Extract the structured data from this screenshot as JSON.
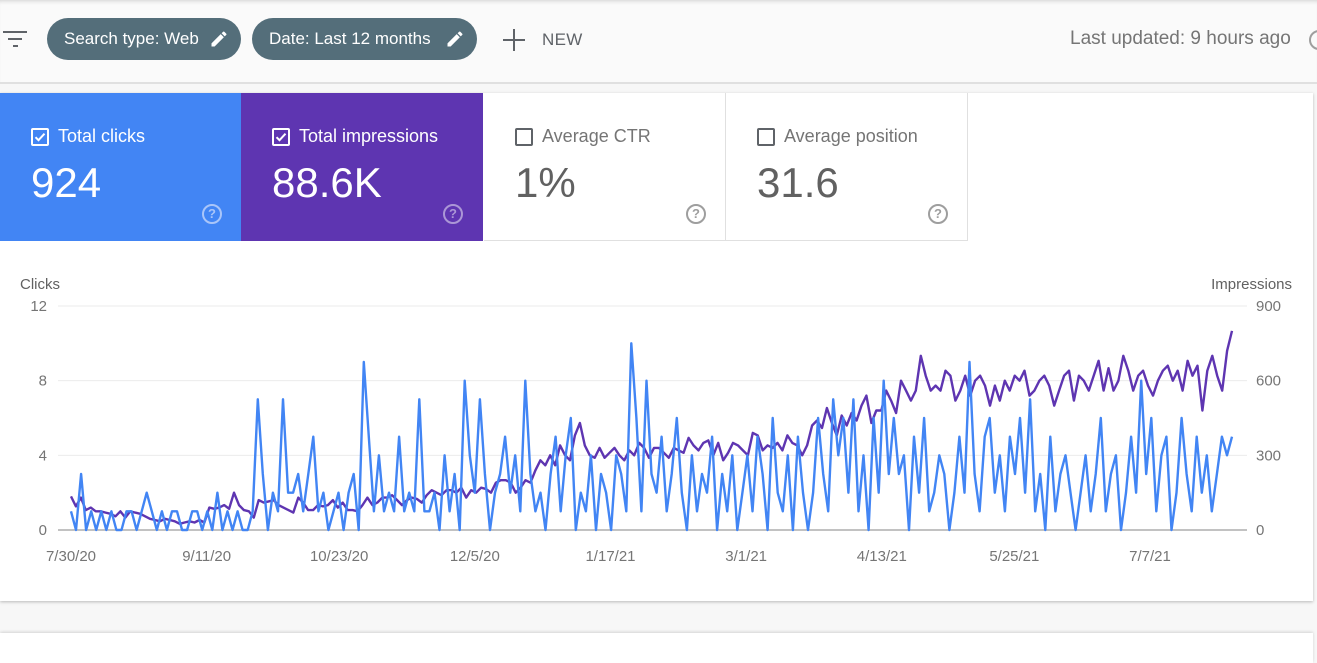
{
  "toolbar": {
    "filter_icon": "filter-list-icon",
    "chips": [
      {
        "label": "Search type: Web",
        "icon": "pencil-icon"
      },
      {
        "label": "Date: Last 12 months",
        "icon": "pencil-icon"
      }
    ],
    "new_label": "NEW",
    "last_updated": "Last updated: 9 hours ago"
  },
  "metrics": [
    {
      "label": "Total clicks",
      "value": "924",
      "checked": true,
      "color": "#4285f4"
    },
    {
      "label": "Total impressions",
      "value": "88.6K",
      "checked": true,
      "color": "#5e35b1"
    },
    {
      "label": "Average CTR",
      "value": "1%",
      "checked": false
    },
    {
      "label": "Average position",
      "value": "31.6",
      "checked": false
    }
  ],
  "help_icon_glyph": "?",
  "chart_data": {
    "type": "line",
    "left_axis_title": "Clicks",
    "right_axis_title": "Impressions",
    "left_ticks": [
      "0",
      "4",
      "8",
      "12"
    ],
    "right_ticks": [
      "0",
      "300",
      "600",
      "900"
    ],
    "ylim_left": [
      0,
      12
    ],
    "ylim_right": [
      0,
      900
    ],
    "x_tick_labels": [
      "7/30/20",
      "9/11/20",
      "10/23/20",
      "12/5/20",
      "1/17/21",
      "3/1/21",
      "4/13/21",
      "5/25/21",
      "7/7/21"
    ],
    "x_tick_days": [
      0,
      43,
      85,
      128,
      171,
      214,
      257,
      299,
      342
    ],
    "x_step_days": 3,
    "grid": true,
    "series": [
      {
        "name": "Clicks",
        "axis": "left",
        "color": "#4285f4",
        "values": [
          1,
          0,
          3,
          0,
          1,
          0,
          1,
          0,
          1,
          0,
          0,
          1,
          1,
          0,
          1,
          2,
          1,
          0,
          1,
          0,
          1,
          1,
          0,
          0,
          1,
          1,
          0,
          1,
          0,
          2,
          0,
          1,
          0,
          1,
          0,
          0,
          1,
          7,
          3,
          0,
          2,
          1,
          7,
          2,
          2,
          3,
          1,
          3,
          5,
          1,
          2,
          0,
          1,
          2,
          0,
          2,
          3,
          0,
          9,
          5,
          1,
          4,
          1,
          2,
          1,
          5,
          1,
          2,
          1,
          7,
          1,
          1,
          2,
          0,
          4,
          1,
          3,
          0,
          8,
          4,
          2,
          7,
          3,
          0,
          2,
          3,
          5,
          2,
          4,
          1,
          8,
          3,
          1,
          2,
          0,
          3,
          5,
          1,
          4,
          6,
          0,
          2,
          1,
          4,
          0,
          3,
          2,
          0,
          4,
          3,
          1,
          10,
          6,
          1,
          8,
          3,
          2,
          5,
          1,
          3,
          6,
          2,
          0,
          4,
          1,
          3,
          2,
          5,
          0,
          3,
          1,
          4,
          0,
          2,
          4,
          1,
          5,
          3,
          0,
          6,
          2,
          1,
          4,
          0,
          5,
          2,
          0,
          2,
          6,
          3,
          1,
          7,
          4,
          6,
          2,
          7,
          1,
          4,
          0,
          6,
          2,
          8,
          3,
          6,
          3,
          4,
          0,
          5,
          2,
          6,
          1,
          2,
          4,
          3,
          0,
          2,
          5,
          2,
          9,
          3,
          1,
          5,
          6,
          2,
          4,
          1,
          5,
          3,
          6,
          2,
          7,
          1,
          3,
          0,
          5,
          1,
          3,
          4,
          2,
          0,
          2,
          4,
          1,
          3,
          6,
          1,
          3,
          4,
          0,
          2,
          5,
          2,
          8,
          3,
          6,
          1,
          4,
          5,
          0,
          2,
          6,
          3,
          1,
          5,
          2,
          4,
          1,
          3,
          5,
          4,
          5
        ],
        "note": "daily clicks approximated from chart"
      },
      {
        "name": "Impressions",
        "axis": "right",
        "color": "#5e35b1",
        "values": [
          135,
          95,
          130,
          80,
          90,
          75,
          75,
          70,
          65,
          55,
          75,
          50,
          75,
          70,
          65,
          55,
          45,
          40,
          35,
          45,
          40,
          35,
          25,
          30,
          35,
          30,
          40,
          30,
          90,
          85,
          90,
          100,
          85,
          150,
          100,
          80,
          75,
          50,
          120,
          110,
          115,
          120,
          100,
          90,
          80,
          70,
          130,
          110,
          80,
          80,
          100,
          95,
          100,
          120,
          90,
          110,
          80,
          80,
          75,
          100,
          130,
          100,
          110,
          130,
          130,
          140,
          120,
          100,
          120,
          130,
          125,
          110,
          140,
          160,
          150,
          140,
          160,
          160,
          150,
          170,
          130,
          160,
          150,
          170,
          165,
          150,
          190,
          200,
          200,
          190,
          150,
          170,
          200,
          190,
          240,
          280,
          260,
          300,
          260,
          340,
          300,
          280,
          380,
          430,
          340,
          300,
          290,
          330,
          290,
          310,
          330,
          300,
          280,
          320,
          300,
          350,
          330,
          290,
          330,
          330,
          310,
          290,
          330,
          320,
          310,
          370,
          340,
          320,
          350,
          360,
          300,
          350,
          280,
          310,
          350,
          340,
          320,
          300,
          390,
          380,
          320,
          340,
          330,
          350,
          320,
          380,
          350,
          340,
          300,
          340,
          420,
          440,
          410,
          490,
          430,
          380,
          460,
          420,
          470,
          440,
          500,
          540,
          430,
          480,
          480,
          560,
          520,
          470,
          600,
          560,
          520,
          560,
          700,
          620,
          560,
          580,
          560,
          640,
          620,
          520,
          560,
          620,
          540,
          600,
          620,
          580,
          500,
          580,
          520,
          600,
          560,
          620,
          600,
          640,
          540,
          560,
          600,
          620,
          580,
          500,
          560,
          620,
          640,
          520,
          620,
          600,
          560,
          620,
          680,
          560,
          650,
          560,
          600,
          700,
          640,
          560,
          620,
          640,
          580,
          540,
          600,
          640,
          660,
          600,
          640,
          560,
          680,
          620,
          660,
          480,
          640,
          700,
          620,
          560,
          720,
          800
        ],
        "note": "daily impressions approximated from chart"
      }
    ]
  }
}
